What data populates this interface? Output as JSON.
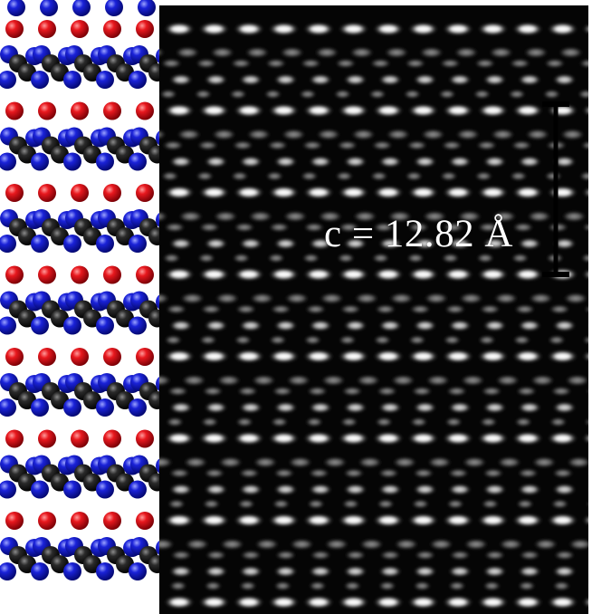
{
  "figure": {
    "lattice_label": "c = 12.82 Å",
    "atom_colors": {
      "red": "#d81018",
      "blue": "#1a20c8",
      "black": "#1a1a1a"
    },
    "scale_bar_color": "#000000",
    "structure_model_repeats": 7,
    "stem_layer_repeats": 7
  }
}
